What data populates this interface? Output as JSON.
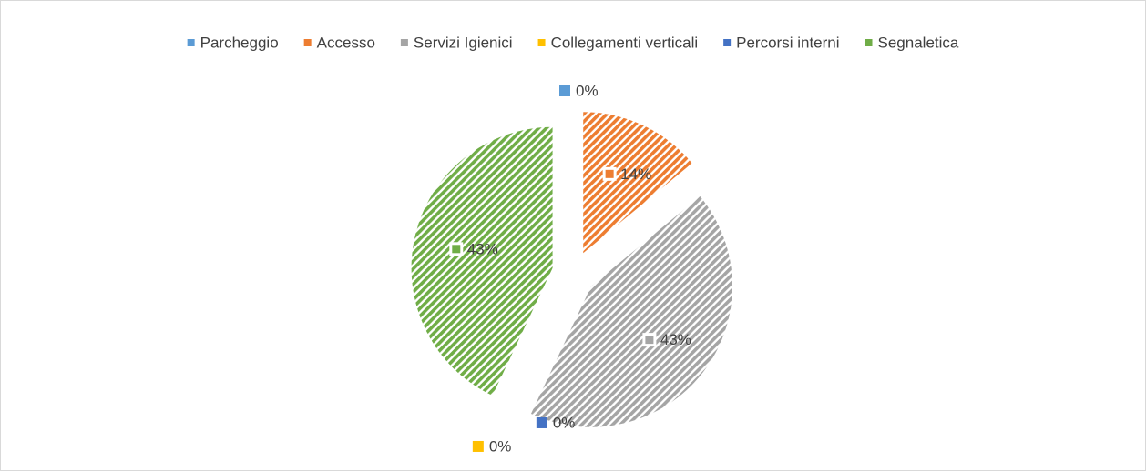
{
  "chart_data": {
    "type": "pie",
    "categories": [
      "Parcheggio",
      "Accesso",
      "Servizi Igienici",
      "Collegamenti verticali",
      "Percorsi interni",
      "Segnaletica"
    ],
    "values": [
      0,
      14,
      43,
      0,
      0,
      43
    ],
    "value_labels": [
      "0%",
      "14%",
      "43%",
      "0%",
      "0%",
      "43%"
    ],
    "colors": [
      "#5b9bd5",
      "#ed7d31",
      "#a5a5a5",
      "#ffc000",
      "#4472c4",
      "#70ad47"
    ],
    "legend": "top"
  }
}
